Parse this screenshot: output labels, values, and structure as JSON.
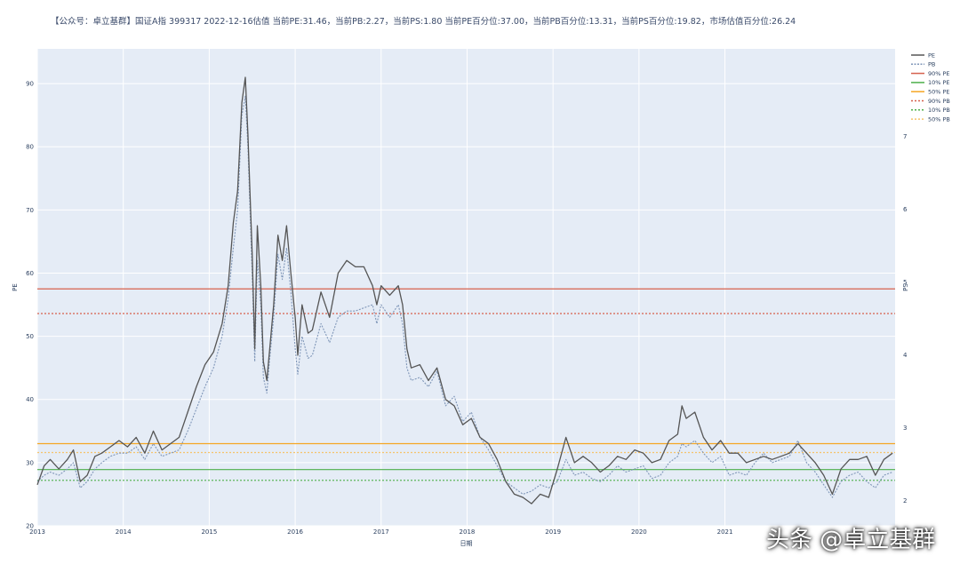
{
  "title": "【公众号：卓立基群】国证A指 399317 2022-12-16估值 当前PE:31.46，当前PB:2.27，当前PS:1.80  当前PE百分位:37.00，当前PB百分位:13.31，当前PS百分位:19.82，市场估值百分位:26.24",
  "watermark": "头条 @卓立基群",
  "chart_data": {
    "type": "line",
    "xlabel": "日期",
    "ylabel": "PE",
    "y2label": "PS",
    "x_ticks": [
      "2013",
      "2014",
      "2015",
      "2016",
      "2017",
      "2018",
      "2019",
      "2020",
      "2021"
    ],
    "xlim": [
      2013.0,
      2022.98
    ],
    "y_ticks": [
      20,
      30,
      40,
      50,
      60,
      70,
      80,
      90
    ],
    "y_tick_labels": [
      "20",
      "30",
      "40",
      "50",
      "60",
      "70",
      "80",
      "90"
    ],
    "ylim": [
      20,
      95.5
    ],
    "y2_ticks": [
      2,
      3,
      4,
      5,
      6,
      7
    ],
    "y2lim": [
      1.65,
      8.2
    ],
    "colors": {
      "pe": "#555555",
      "pb": "#7f96b8",
      "pe90": "#d6604d",
      "pe10": "#4daf4a",
      "pe50": "#f5a623",
      "pb90": "#d6604d",
      "pb10": "#4daf4a",
      "pb50": "#f5c36b",
      "plot_bg": "#e5ecf6",
      "grid": "#ffffff"
    },
    "reference_lines": {
      "pe90": 57.5,
      "pe10": 28.9,
      "pe50": 33.0,
      "pb90": 53.6,
      "pb10": 27.2,
      "pb50": 31.6
    },
    "legend": [
      "PE",
      "PB",
      "90% PE",
      "10% PE",
      "50% PE",
      "90% PB",
      "10% PB",
      "50% PB"
    ],
    "legend_position": "top-right",
    "series": [
      {
        "name": "PE",
        "style": "solid",
        "x": [
          2013.0,
          2013.08,
          2013.15,
          2013.25,
          2013.35,
          2013.42,
          2013.5,
          2013.58,
          2013.67,
          2013.75,
          2013.85,
          2013.95,
          2014.05,
          2014.15,
          2014.25,
          2014.35,
          2014.45,
          2014.55,
          2014.65,
          2014.75,
          2014.85,
          2014.95,
          2015.05,
          2015.15,
          2015.22,
          2015.28,
          2015.33,
          2015.38,
          2015.42,
          2015.45,
          2015.5,
          2015.53,
          2015.56,
          2015.6,
          2015.63,
          2015.67,
          2015.7,
          2015.75,
          2015.8,
          2015.85,
          2015.9,
          2015.95,
          2016.0,
          2016.03,
          2016.08,
          2016.15,
          2016.2,
          2016.3,
          2016.4,
          2016.5,
          2016.6,
          2016.7,
          2016.8,
          2016.9,
          2016.95,
          2017.0,
          2017.1,
          2017.2,
          2017.25,
          2017.3,
          2017.35,
          2017.45,
          2017.55,
          2017.65,
          2017.75,
          2017.85,
          2017.95,
          2018.05,
          2018.15,
          2018.25,
          2018.35,
          2018.45,
          2018.55,
          2018.65,
          2018.75,
          2018.85,
          2018.95,
          2019.05,
          2019.15,
          2019.25,
          2019.35,
          2019.45,
          2019.55,
          2019.65,
          2019.75,
          2019.85,
          2019.95,
          2020.05,
          2020.15,
          2020.25,
          2020.35,
          2020.45,
          2020.5,
          2020.55,
          2020.65,
          2020.75,
          2020.85,
          2020.95,
          2021.05,
          2021.15,
          2021.25,
          2021.35,
          2021.45,
          2021.55,
          2021.65,
          2021.75,
          2021.85,
          2021.95,
          2022.05,
          2022.15,
          2022.25,
          2022.35,
          2022.45,
          2022.55,
          2022.65,
          2022.75,
          2022.85,
          2022.95
        ],
        "values": [
          26.5,
          29.5,
          30.5,
          29.0,
          30.5,
          32.0,
          27.0,
          28.0,
          31.0,
          31.5,
          32.5,
          33.5,
          32.5,
          34.0,
          31.5,
          35.0,
          32.0,
          33.0,
          34.0,
          38.0,
          42.0,
          45.5,
          47.5,
          52.0,
          58.0,
          68.0,
          73.0,
          87.0,
          91.0,
          82.0,
          63.0,
          48.0,
          67.5,
          58.0,
          46.0,
          43.0,
          47.5,
          55.0,
          66.0,
          62.0,
          67.5,
          60.0,
          53.0,
          47.0,
          55.0,
          50.5,
          51.0,
          57.0,
          53.0,
          60.0,
          62.0,
          61.0,
          61.0,
          58.0,
          55.0,
          58.0,
          56.5,
          58.0,
          55.0,
          48.0,
          45.0,
          45.5,
          43.0,
          45.0,
          40.0,
          39.0,
          36.0,
          37.0,
          34.0,
          33.0,
          30.5,
          27.0,
          25.0,
          24.5,
          23.5,
          25.0,
          24.5,
          29.0,
          34.0,
          30.0,
          31.0,
          30.0,
          28.5,
          29.5,
          31.0,
          30.5,
          32.0,
          31.5,
          30.0,
          30.5,
          33.5,
          34.5,
          39.0,
          37.0,
          38.0,
          34.0,
          32.0,
          33.5,
          31.5,
          31.5,
          30.0,
          30.5,
          31.0,
          30.5,
          31.0,
          31.5,
          33.0,
          31.5,
          30.0,
          28.0,
          25.0,
          29.0,
          30.5,
          30.5,
          31.0,
          28.0,
          30.5,
          31.5
        ]
      },
      {
        "name": "PB",
        "style": "dotted",
        "x": [
          2013.0,
          2013.08,
          2013.15,
          2013.25,
          2013.35,
          2013.42,
          2013.5,
          2013.58,
          2013.67,
          2013.75,
          2013.85,
          2013.95,
          2014.05,
          2014.15,
          2014.25,
          2014.35,
          2014.45,
          2014.55,
          2014.65,
          2014.75,
          2014.85,
          2014.95,
          2015.05,
          2015.15,
          2015.22,
          2015.28,
          2015.33,
          2015.38,
          2015.42,
          2015.45,
          2015.5,
          2015.53,
          2015.56,
          2015.6,
          2015.63,
          2015.67,
          2015.7,
          2015.75,
          2015.8,
          2015.85,
          2015.9,
          2015.95,
          2016.0,
          2016.03,
          2016.08,
          2016.15,
          2016.2,
          2016.3,
          2016.4,
          2016.5,
          2016.6,
          2016.7,
          2016.8,
          2016.9,
          2016.95,
          2017.0,
          2017.1,
          2017.2,
          2017.25,
          2017.3,
          2017.35,
          2017.45,
          2017.55,
          2017.65,
          2017.75,
          2017.85,
          2017.95,
          2018.05,
          2018.15,
          2018.25,
          2018.35,
          2018.45,
          2018.55,
          2018.65,
          2018.75,
          2018.85,
          2018.95,
          2019.05,
          2019.15,
          2019.25,
          2019.35,
          2019.45,
          2019.55,
          2019.65,
          2019.75,
          2019.85,
          2019.95,
          2020.05,
          2020.15,
          2020.25,
          2020.35,
          2020.45,
          2020.5,
          2020.55,
          2020.65,
          2020.75,
          2020.85,
          2020.95,
          2021.05,
          2021.15,
          2021.25,
          2021.35,
          2021.45,
          2021.55,
          2021.65,
          2021.75,
          2021.85,
          2021.95,
          2022.05,
          2022.15,
          2022.25,
          2022.35,
          2022.45,
          2022.55,
          2022.65,
          2022.75,
          2022.85,
          2022.95
        ],
        "values": [
          27.0,
          28.0,
          28.5,
          28.0,
          29.0,
          30.0,
          26.0,
          27.0,
          29.0,
          30.0,
          31.0,
          31.5,
          31.5,
          32.5,
          30.5,
          33.0,
          31.0,
          31.5,
          32.0,
          35.0,
          38.5,
          42.0,
          45.0,
          50.0,
          56.0,
          64.0,
          70.0,
          85.0,
          88.0,
          80.0,
          60.0,
          46.0,
          62.0,
          55.0,
          43.5,
          41.0,
          46.0,
          53.0,
          63.0,
          59.0,
          64.0,
          57.0,
          48.0,
          44.0,
          50.0,
          46.5,
          47.0,
          52.0,
          49.0,
          53.0,
          54.0,
          54.0,
          54.5,
          55.0,
          52.0,
          55.0,
          53.0,
          55.0,
          52.0,
          45.0,
          43.0,
          43.5,
          42.0,
          44.5,
          39.0,
          40.5,
          36.5,
          38.0,
          34.0,
          32.0,
          29.5,
          27.0,
          26.0,
          25.0,
          25.5,
          26.5,
          26.0,
          27.0,
          30.5,
          28.0,
          28.5,
          27.5,
          27.0,
          28.0,
          29.5,
          28.5,
          29.0,
          29.5,
          27.5,
          28.0,
          30.0,
          31.0,
          33.0,
          32.5,
          33.5,
          31.5,
          30.0,
          31.0,
          28.0,
          28.5,
          28.0,
          30.0,
          31.5,
          30.0,
          30.5,
          31.0,
          33.5,
          30.0,
          28.5,
          26.5,
          24.5,
          27.0,
          28.0,
          28.5,
          27.0,
          26.0,
          28.0,
          28.5
        ]
      }
    ]
  }
}
